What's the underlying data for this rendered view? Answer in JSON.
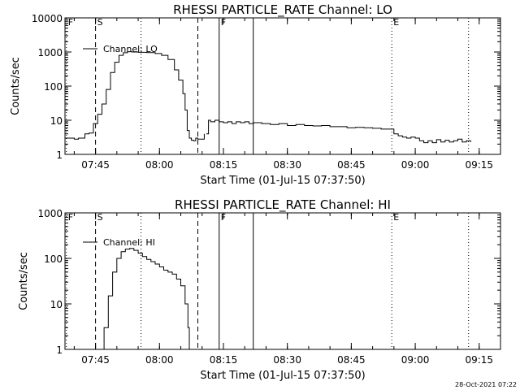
{
  "footer": "28-Oct-2021 07:22",
  "chart_data": [
    {
      "type": "line",
      "title": "RHESSI PARTICLE_RATE Channel: LO",
      "xlabel": "Start Time (01-Jul-15 07:37:50)",
      "ylabel": "Counts/sec",
      "yscale": "log",
      "ylim": [
        1,
        10000
      ],
      "xlim": [
        "07:37:50",
        "09:20:00"
      ],
      "x_ticks": [
        "07:45",
        "08:00",
        "08:15",
        "08:30",
        "08:45",
        "09:00",
        "09:15"
      ],
      "y_ticks": [
        "1",
        "10",
        "100",
        "1000",
        "10000"
      ],
      "legend": "Channel: LO",
      "markers": [
        {
          "label": "F",
          "time": "07:38:10",
          "style": "dotted"
        },
        {
          "label": "S",
          "time": "07:45:00",
          "style": "dashed"
        },
        {
          "label": "",
          "time": "07:55:40",
          "style": "dotted"
        },
        {
          "label": "",
          "time": "08:09:00",
          "style": "dashed"
        },
        {
          "label": "F",
          "time": "08:14:00",
          "style": "solid"
        },
        {
          "label": "",
          "time": "08:22:00",
          "style": "solid"
        },
        {
          "label": "E",
          "time": "08:54:30",
          "style": "dotted"
        },
        {
          "label": "",
          "time": "09:12:30",
          "style": "dotted"
        }
      ],
      "series": [
        {
          "x": [
            "07:38:00",
            "07:39:00",
            "07:40:00",
            "07:41:00",
            "07:42:00",
            "07:42:30",
            "07:43:30",
            "07:44:30",
            "07:45:30",
            "07:46:30",
            "07:47:30",
            "07:48:30",
            "07:49:30",
            "07:50:30",
            "07:51:30",
            "07:52:30",
            "07:53:30",
            "07:55:00",
            "07:57:00",
            "07:59:00",
            "08:00:30",
            "08:02:00",
            "08:03:30",
            "08:04:30",
            "08:05:30",
            "08:06:00",
            "08:06:30",
            "08:07:00",
            "08:07:30",
            "08:08:00",
            "08:08:30",
            "08:09:00",
            "08:10:00",
            "08:10:30"
          ],
          "values": [
            3,
            3,
            2.8,
            3,
            3,
            4,
            4.2,
            8,
            15,
            30,
            80,
            250,
            500,
            800,
            950,
            1020,
            1000,
            980,
            960,
            900,
            800,
            600,
            300,
            150,
            60,
            20,
            5,
            3,
            2.6,
            2.5,
            3,
            2.8,
            2.8,
            4
          ]
        },
        {
          "x": [
            "08:11:00",
            "08:11:30",
            "08:12:00",
            "08:13:00",
            "08:14:00",
            "08:15:00",
            "08:16:00",
            "08:17:00",
            "08:18:00",
            "08:19:00",
            "08:20:00",
            "08:21:00",
            "08:22:00",
            "08:24:00",
            "08:26:00",
            "08:28:00",
            "08:30:00",
            "08:32:00",
            "08:34:00",
            "08:36:00",
            "08:38:00",
            "08:40:00",
            "08:42:00",
            "08:44:00",
            "08:46:00",
            "08:48:00",
            "08:50:00",
            "08:52:00",
            "08:54:00",
            "08:55:00",
            "08:56:00",
            "08:57:00",
            "08:58:00",
            "08:59:00",
            "09:00:00",
            "09:01:00",
            "09:02:00",
            "09:03:00",
            "09:04:00",
            "09:05:00",
            "09:06:00",
            "09:07:00",
            "09:08:00",
            "09:09:00",
            "09:10:00",
            "09:11:00",
            "09:12:00",
            "09:13:00"
          ],
          "values": [
            4,
            10,
            9,
            10,
            9,
            8.5,
            9,
            8,
            9,
            8.5,
            9,
            8,
            8.5,
            8,
            7.5,
            8,
            7,
            7.5,
            7,
            6.8,
            7,
            6.5,
            6.5,
            6,
            6.2,
            6,
            5.8,
            5.5,
            5.5,
            4,
            3.5,
            3.2,
            3,
            3.2,
            3,
            2.5,
            2.2,
            2.5,
            2.2,
            2.7,
            2.3,
            2.6,
            2.3,
            2.5,
            2.8,
            2.3,
            2.5,
            2.3
          ]
        }
      ]
    },
    {
      "type": "line",
      "title": "RHESSI PARTICLE_RATE Channel: HI",
      "xlabel": "Start Time (01-Jul-15 07:37:50)",
      "ylabel": "Counts/sec",
      "yscale": "log",
      "ylim": [
        1,
        1000
      ],
      "xlim": [
        "07:37:50",
        "09:20:00"
      ],
      "x_ticks": [
        "07:45",
        "08:00",
        "08:15",
        "08:30",
        "08:45",
        "09:00",
        "09:15"
      ],
      "y_ticks": [
        "1",
        "10",
        "100",
        "1000"
      ],
      "legend": "Channel: HI",
      "markers": [
        {
          "label": "F",
          "time": "07:38:10",
          "style": "dotted"
        },
        {
          "label": "S",
          "time": "07:45:00",
          "style": "dashed"
        },
        {
          "label": "",
          "time": "07:55:40",
          "style": "dotted"
        },
        {
          "label": "",
          "time": "08:09:00",
          "style": "dashed"
        },
        {
          "label": "F",
          "time": "08:14:00",
          "style": "solid"
        },
        {
          "label": "",
          "time": "08:22:00",
          "style": "solid"
        },
        {
          "label": "E",
          "time": "08:54:30",
          "style": "dotted"
        },
        {
          "label": "",
          "time": "09:12:30",
          "style": "dotted"
        }
      ],
      "series": [
        {
          "x": [
            "07:46:20",
            "07:47:00",
            "07:48:00",
            "07:49:00",
            "07:50:00",
            "07:51:00",
            "07:52:00",
            "07:53:00",
            "07:54:00",
            "07:55:00",
            "07:56:00",
            "07:57:00",
            "07:58:00",
            "07:59:00",
            "08:00:00",
            "08:01:00",
            "08:02:00",
            "08:03:00",
            "08:04:00",
            "08:05:00",
            "08:06:00",
            "08:06:40",
            "08:07:00"
          ],
          "values": [
            1,
            3,
            15,
            50,
            100,
            140,
            160,
            165,
            150,
            130,
            110,
            95,
            85,
            75,
            65,
            55,
            50,
            45,
            35,
            25,
            10,
            3,
            1
          ]
        }
      ]
    }
  ]
}
